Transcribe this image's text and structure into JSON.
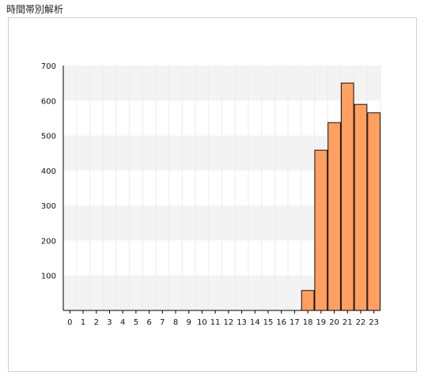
{
  "page": {
    "title": "時間帯別解析"
  },
  "colors": {
    "bar_fill": "#ffa060",
    "bar_stroke": "#111111",
    "band": "#f3f3f3",
    "vgrid": "#ececec",
    "axis": "#000000"
  },
  "chart_data": {
    "type": "bar",
    "title": "",
    "xlabel": "",
    "ylabel": "",
    "ylim": [
      0,
      700
    ],
    "yticks": [
      100,
      200,
      300,
      400,
      500,
      600,
      700
    ],
    "categories": [
      "0",
      "1",
      "2",
      "3",
      "4",
      "5",
      "6",
      "7",
      "8",
      "9",
      "10",
      "11",
      "12",
      "13",
      "14",
      "15",
      "16",
      "17",
      "18",
      "19",
      "20",
      "21",
      "22",
      "23"
    ],
    "values": [
      0,
      0,
      0,
      0,
      0,
      0,
      0,
      0,
      0,
      0,
      0,
      0,
      0,
      0,
      0,
      0,
      0,
      0,
      57,
      458,
      537,
      650,
      589,
      565
    ],
    "grid": "horizontal alternating bands with faint vertical lines",
    "legend": "none"
  }
}
